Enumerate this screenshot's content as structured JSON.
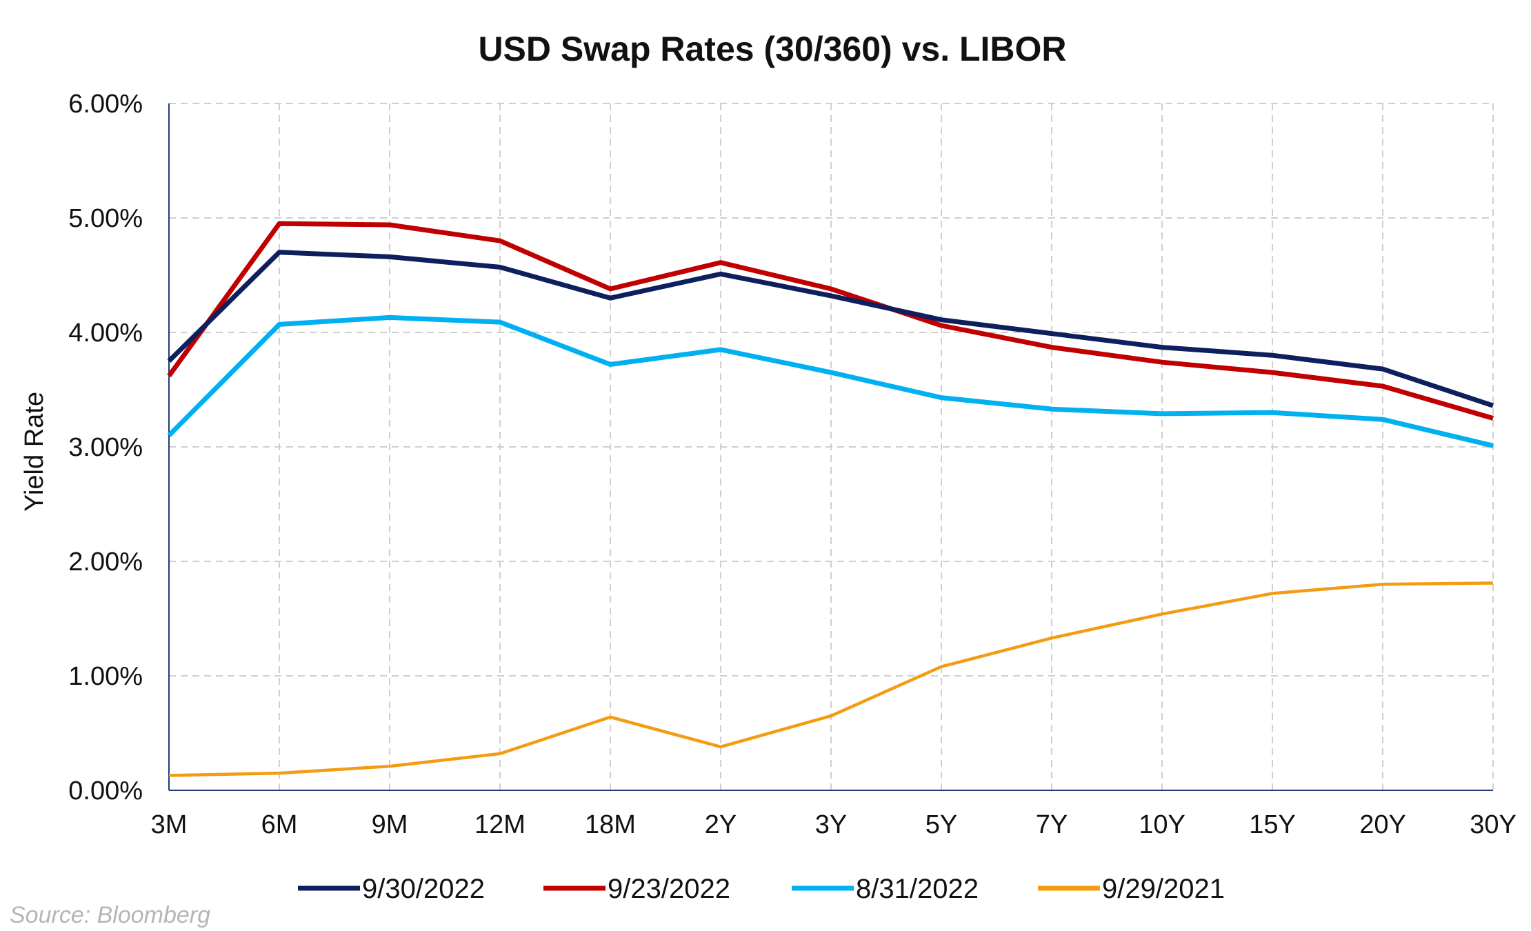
{
  "chart_data": {
    "type": "line",
    "title": "USD Swap Rates (30/360) vs. LIBOR",
    "xlabel": "",
    "ylabel": "Yield Rate",
    "ylim": [
      0,
      6
    ],
    "y_ticks": [
      "0.00%",
      "1.00%",
      "2.00%",
      "3.00%",
      "4.00%",
      "5.00%",
      "6.00%"
    ],
    "categories": [
      "3M",
      "6M",
      "9M",
      "12M",
      "18M",
      "2Y",
      "3Y",
      "5Y",
      "7Y",
      "10Y",
      "15Y",
      "20Y",
      "30Y"
    ],
    "grid": true,
    "legend_position": "bottom",
    "series": [
      {
        "name": "9/30/2022",
        "color": "#0d1f5c",
        "values": [
          3.75,
          4.7,
          4.66,
          4.57,
          4.3,
          4.51,
          4.32,
          4.11,
          3.99,
          3.87,
          3.8,
          3.68,
          3.36
        ]
      },
      {
        "name": "9/23/2022",
        "color": "#c00000",
        "values": [
          3.62,
          4.95,
          4.94,
          4.8,
          4.38,
          4.61,
          4.38,
          4.06,
          3.87,
          3.74,
          3.65,
          3.53,
          3.25
        ]
      },
      {
        "name": "8/31/2022",
        "color": "#00b0f0",
        "values": [
          3.1,
          4.07,
          4.13,
          4.09,
          3.72,
          3.85,
          3.65,
          3.43,
          3.33,
          3.29,
          3.3,
          3.24,
          3.01
        ]
      },
      {
        "name": "9/29/2021",
        "color": "#f39c12",
        "values": [
          0.13,
          0.15,
          0.21,
          0.32,
          0.64,
          0.38,
          0.65,
          1.08,
          1.33,
          1.54,
          1.72,
          1.8,
          1.81
        ]
      }
    ]
  },
  "source_note": "Source: Bloomberg"
}
